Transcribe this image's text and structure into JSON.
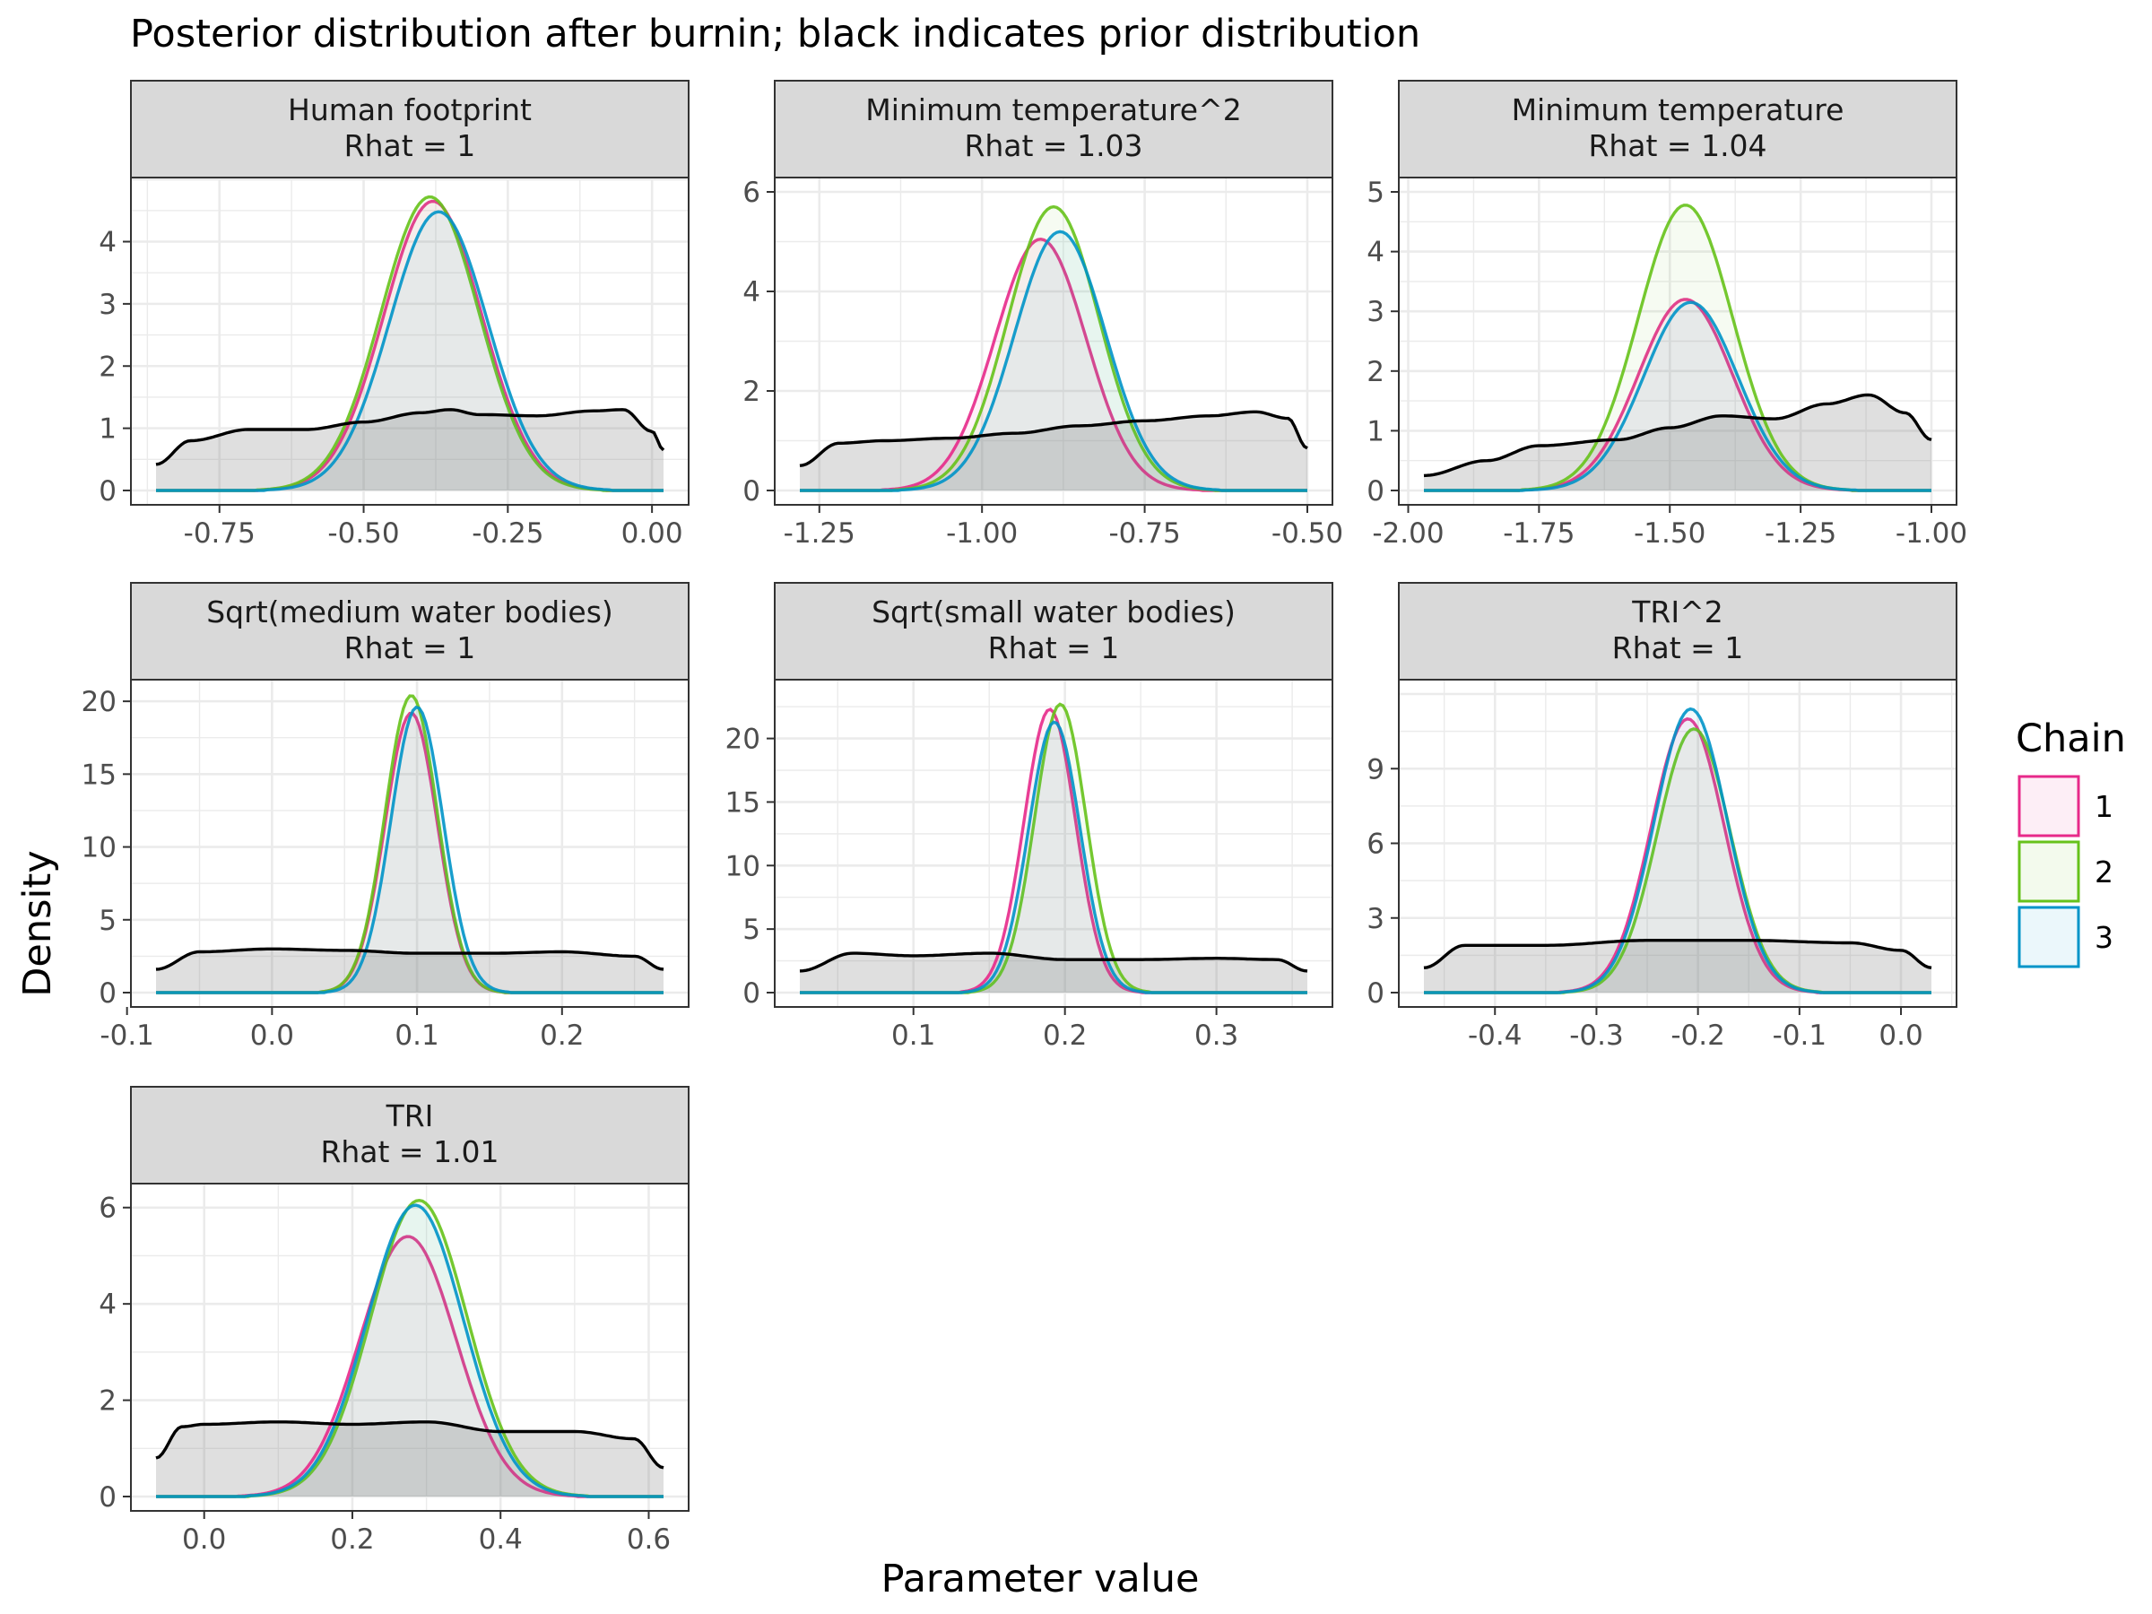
{
  "title": "Posterior distribution after burnin; black indicates prior distribution",
  "xlabel": "Parameter value",
  "ylabel": "Density",
  "legend": {
    "title": "Chain",
    "entries": [
      {
        "label": "1",
        "color": "#e7298a"
      },
      {
        "label": "2",
        "color": "#66c21a"
      },
      {
        "label": "3",
        "color": "#0094c8"
      }
    ]
  },
  "colors": {
    "prior": "#000000",
    "panel_bg": "#ffffff",
    "strip_bg": "#d9d9d9",
    "grid": "#ebebeb"
  },
  "chart_data": [
    {
      "type": "area",
      "panel": "Human footprint",
      "strip": [
        "Human footprint",
        "Rhat = 1"
      ],
      "xlim": [
        -0.86,
        0.02
      ],
      "ylim": [
        0,
        4.8
      ],
      "xticks": [
        -0.75,
        -0.5,
        -0.25,
        0.0
      ],
      "xticklabels": [
        "-0.75",
        "-0.50",
        "-0.25",
        "0.00"
      ],
      "yticks": [
        0,
        1,
        2,
        3,
        4
      ],
      "yticklabels": [
        "0",
        "1",
        "2",
        "3",
        "4"
      ],
      "posterior": {
        "center": -0.38,
        "sd": 0.085
      },
      "chains": [
        {
          "name": "1",
          "peak": 4.65,
          "shift": 0.0
        },
        {
          "name": "2",
          "peak": 4.72,
          "shift": -0.005
        },
        {
          "name": "3",
          "peak": 4.48,
          "shift": 0.01
        }
      ],
      "prior": {
        "x": [
          -0.86,
          -0.8,
          -0.7,
          -0.6,
          -0.5,
          -0.4,
          -0.35,
          -0.3,
          -0.2,
          -0.1,
          -0.05,
          0.0,
          0.02
        ],
        "y": [
          0.42,
          0.8,
          0.98,
          0.98,
          1.1,
          1.25,
          1.3,
          1.22,
          1.2,
          1.28,
          1.3,
          0.95,
          0.65
        ]
      }
    },
    {
      "type": "area",
      "panel": "Minimum temperature^2",
      "strip": [
        "Minimum temperature^2",
        "Rhat = 1.03"
      ],
      "xlim": [
        -1.28,
        -0.5
      ],
      "ylim": [
        0,
        6.0
      ],
      "xticks": [
        -1.25,
        -1.0,
        -0.75,
        -0.5
      ],
      "xticklabels": [
        "-1.25",
        "-1.00",
        "-0.75",
        "-0.50"
      ],
      "yticks": [
        0,
        2,
        4,
        6
      ],
      "yticklabels": [
        "0",
        "2",
        "4",
        "6"
      ],
      "posterior": {
        "center": -0.89,
        "sd": 0.07
      },
      "chains": [
        {
          "name": "1",
          "peak": 5.05,
          "shift": -0.02
        },
        {
          "name": "2",
          "peak": 5.7,
          "shift": 0.0
        },
        {
          "name": "3",
          "peak": 5.2,
          "shift": 0.01
        }
      ],
      "prior": {
        "x": [
          -1.28,
          -1.22,
          -1.15,
          -1.05,
          -0.95,
          -0.85,
          -0.75,
          -0.65,
          -0.58,
          -0.53,
          -0.5
        ],
        "y": [
          0.5,
          0.95,
          1.0,
          1.05,
          1.15,
          1.3,
          1.4,
          1.5,
          1.58,
          1.45,
          0.85
        ]
      }
    },
    {
      "type": "area",
      "panel": "Minimum temperature",
      "strip": [
        "Minimum temperature",
        "Rhat = 1.04"
      ],
      "xlim": [
        -1.97,
        -1.0
      ],
      "ylim": [
        0,
        5.0
      ],
      "xticks": [
        -2.0,
        -1.75,
        -1.5,
        -1.25,
        -1.0
      ],
      "xticklabels": [
        "-2.00",
        "-1.75",
        "-1.50",
        "-1.25",
        "-1.00"
      ],
      "yticks": [
        0,
        1,
        2,
        3,
        4,
        5
      ],
      "yticklabels": [
        "0",
        "1",
        "2",
        "3",
        "4",
        "5"
      ],
      "posterior": {
        "center": -1.47,
        "sd": 0.09
      },
      "chains": [
        {
          "name": "1",
          "peak": 3.2,
          "shift": 0.0
        },
        {
          "name": "2",
          "peak": 4.78,
          "shift": 0.0
        },
        {
          "name": "3",
          "peak": 3.15,
          "shift": 0.01
        }
      ],
      "prior": {
        "x": [
          -1.97,
          -1.85,
          -1.75,
          -1.6,
          -1.5,
          -1.4,
          -1.3,
          -1.2,
          -1.12,
          -1.05,
          -1.0
        ],
        "y": [
          0.25,
          0.5,
          0.75,
          0.85,
          1.05,
          1.25,
          1.2,
          1.45,
          1.6,
          1.3,
          0.85
        ]
      }
    },
    {
      "type": "area",
      "panel": "Sqrt(medium water bodies)",
      "strip": [
        "Sqrt(medium water bodies)",
        "Rhat = 1"
      ],
      "xlim": [
        -0.08,
        0.27
      ],
      "ylim": [
        0,
        20.5
      ],
      "xticks": [
        -0.1,
        0.0,
        0.1,
        0.2
      ],
      "xticklabels": [
        "-0.1",
        "0.0",
        "0.1",
        "0.2"
      ],
      "yticks": [
        0,
        5,
        10,
        15,
        20
      ],
      "yticklabels": [
        "0",
        "5",
        "10",
        "15",
        "20"
      ],
      "posterior": {
        "center": 0.098,
        "sd": 0.018
      },
      "chains": [
        {
          "name": "1",
          "peak": 19.2,
          "shift": -0.002
        },
        {
          "name": "2",
          "peak": 20.4,
          "shift": -0.002
        },
        {
          "name": "3",
          "peak": 19.6,
          "shift": 0.002
        }
      ],
      "prior": {
        "x": [
          -0.08,
          -0.05,
          0.0,
          0.05,
          0.1,
          0.15,
          0.2,
          0.25,
          0.27
        ],
        "y": [
          1.6,
          2.8,
          3.0,
          2.9,
          2.7,
          2.7,
          2.8,
          2.5,
          1.6
        ]
      }
    },
    {
      "type": "area",
      "panel": "Sqrt(small water bodies)",
      "strip": [
        "Sqrt(small water bodies)",
        "Rhat = 1"
      ],
      "xlim": [
        0.025,
        0.36
      ],
      "ylim": [
        0,
        23.5
      ],
      "xticks": [
        0.1,
        0.2,
        0.3
      ],
      "xticklabels": [
        "0.1",
        "0.2",
        "0.3"
      ],
      "yticks": [
        0,
        5,
        10,
        15,
        20
      ],
      "yticklabels": [
        "0",
        "5",
        "10",
        "15",
        "20"
      ],
      "posterior": {
        "center": 0.193,
        "sd": 0.017
      },
      "chains": [
        {
          "name": "1",
          "peak": 22.3,
          "shift": -0.003
        },
        {
          "name": "2",
          "peak": 22.7,
          "shift": 0.004
        },
        {
          "name": "3",
          "peak": 21.3,
          "shift": 0.0
        }
      ],
      "prior": {
        "x": [
          0.025,
          0.06,
          0.1,
          0.15,
          0.2,
          0.25,
          0.3,
          0.34,
          0.36
        ],
        "y": [
          1.7,
          3.1,
          2.9,
          3.1,
          2.6,
          2.6,
          2.7,
          2.6,
          1.7
        ]
      }
    },
    {
      "type": "area",
      "panel": "TRI^2",
      "strip": [
        "TRI^2",
        "Rhat = 1"
      ],
      "xlim": [
        -0.47,
        0.03
      ],
      "ylim": [
        0,
        12.0
      ],
      "xticks": [
        -0.4,
        -0.3,
        -0.2,
        -0.1,
        0.0
      ],
      "xticklabels": [
        "-0.4",
        "-0.3",
        "-0.2",
        "-0.1",
        "0.0"
      ],
      "yticks": [
        0,
        3,
        6,
        9
      ],
      "yticklabels": [
        "0",
        "3",
        "6",
        "9"
      ],
      "posterior": {
        "center": -0.207,
        "sd": 0.036
      },
      "chains": [
        {
          "name": "1",
          "peak": 11.0,
          "shift": -0.003
        },
        {
          "name": "2",
          "peak": 10.6,
          "shift": 0.003
        },
        {
          "name": "3",
          "peak": 11.4,
          "shift": 0.0
        }
      ],
      "prior": {
        "x": [
          -0.47,
          -0.43,
          -0.35,
          -0.25,
          -0.15,
          -0.05,
          0.0,
          0.03
        ],
        "y": [
          1.0,
          1.9,
          1.9,
          2.1,
          2.1,
          2.0,
          1.7,
          1.0
        ]
      }
    },
    {
      "type": "area",
      "panel": "TRI",
      "strip": [
        "TRI",
        "Rhat = 1.01"
      ],
      "xlim": [
        -0.065,
        0.62
      ],
      "ylim": [
        0,
        6.2
      ],
      "xticks": [
        0.0,
        0.2,
        0.4,
        0.6
      ],
      "xticklabels": [
        "0.0",
        "0.2",
        "0.4",
        "0.6"
      ],
      "yticks": [
        0,
        2,
        4,
        6
      ],
      "yticklabels": [
        "0",
        "2",
        "4",
        "6"
      ],
      "posterior": {
        "center": 0.285,
        "sd": 0.065
      },
      "chains": [
        {
          "name": "1",
          "peak": 5.4,
          "shift": -0.01
        },
        {
          "name": "2",
          "peak": 6.15,
          "shift": 0.005
        },
        {
          "name": "3",
          "peak": 6.05,
          "shift": 0.0
        }
      ],
      "prior": {
        "x": [
          -0.065,
          -0.03,
          0.0,
          0.1,
          0.2,
          0.3,
          0.4,
          0.5,
          0.58,
          0.62
        ],
        "y": [
          0.8,
          1.45,
          1.5,
          1.55,
          1.5,
          1.55,
          1.35,
          1.35,
          1.2,
          0.6
        ]
      }
    }
  ]
}
